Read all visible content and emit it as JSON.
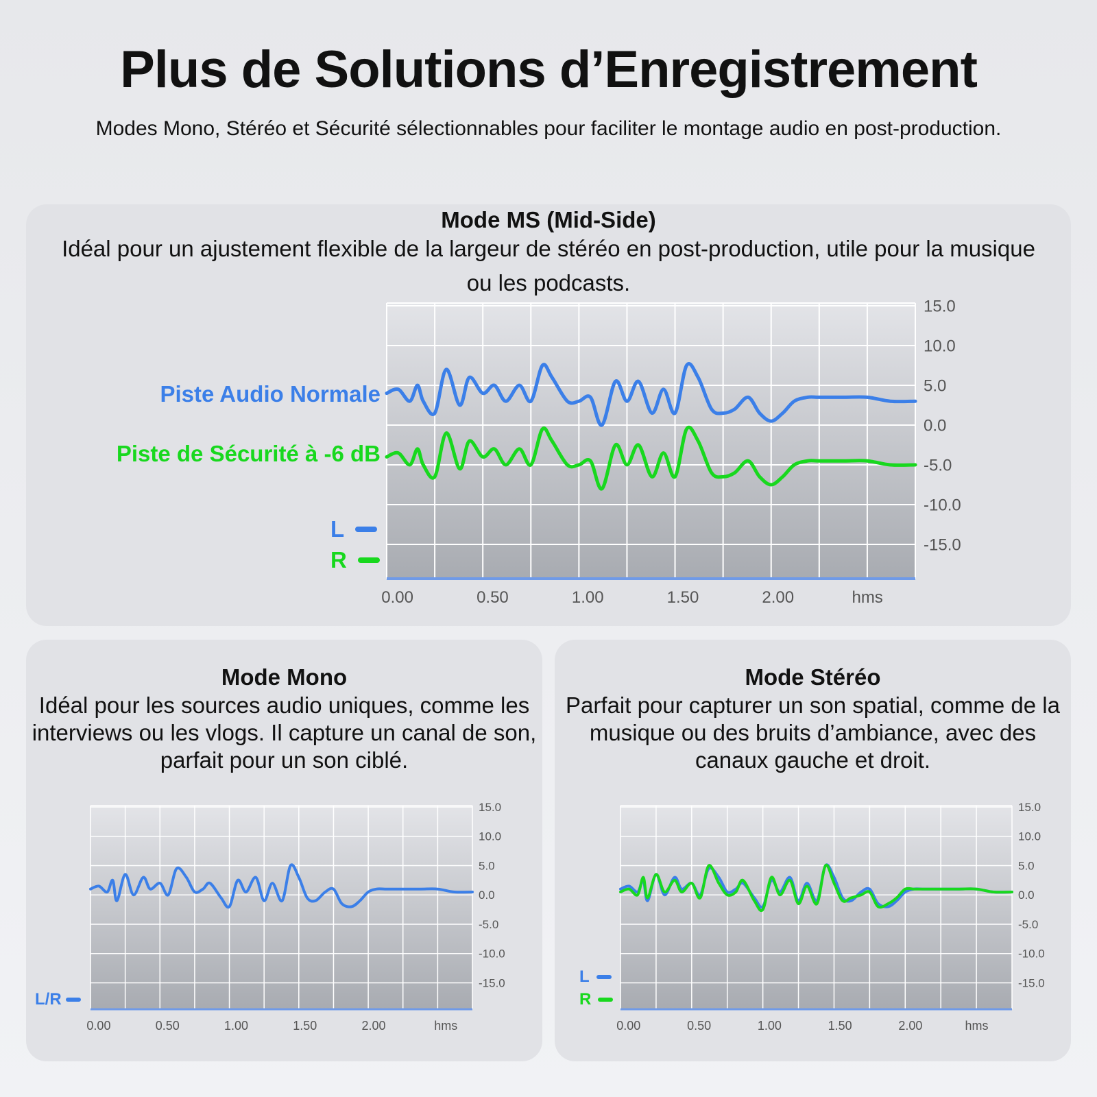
{
  "header": {
    "title": "Plus de Solutions d’Enregistrement",
    "subtitle": "Modes Mono, Stéréo et Sécurité sélectionnables pour faciliter le montage audio en post-production."
  },
  "colors": {
    "blue": "#3b7fe8",
    "green": "#18d81e"
  },
  "cards": {
    "ms": {
      "title": "Mode MS (Mid-Side)",
      "description": "Idéal pour un ajustement flexible de la largeur de stéréo en post-production, utile pour la musique ou les podcasts.",
      "series_labels": [
        "Piste Audio Normale",
        "Piste de Sécurité à -6 dB"
      ],
      "legend": [
        "L",
        "R"
      ]
    },
    "mono": {
      "title": "Mode Mono",
      "description": "Idéal pour les sources audio uniques, comme les interviews ou les vlogs. Il capture un canal de son, parfait pour un son ciblé.",
      "legend": [
        "L/R"
      ]
    },
    "stereo": {
      "title": "Mode Stéréo",
      "description": "Parfait pour capturer un son spatial, comme de la musique ou des bruits d’ambiance, avec des canaux gauche et droit.",
      "legend": [
        "L",
        "R"
      ]
    }
  },
  "chart_data": [
    {
      "type": "line",
      "title": "Mode MS (Mid-Side)",
      "x_tick_labels": [
        "0.00",
        "0.50",
        "1.00",
        "1.50",
        "2.00",
        "hms"
      ],
      "y_tick_labels": [
        "15.0",
        "10.0",
        "5.0",
        "0.0",
        "-5.0",
        "-10.0",
        "-15.0"
      ],
      "xlim": [
        0,
        2.75
      ],
      "ylim": [
        -19.5,
        15.0
      ],
      "grid": true,
      "series": [
        {
          "name": "Piste Audio Normale",
          "legend": "L",
          "color": "#3b7fe8",
          "x": [
            0,
            0.06,
            0.12,
            0.16,
            0.19,
            0.25,
            0.31,
            0.38,
            0.43,
            0.5,
            0.56,
            0.62,
            0.69,
            0.75,
            0.81,
            0.86,
            0.94,
            1.0,
            1.06,
            1.12,
            1.19,
            1.25,
            1.31,
            1.38,
            1.44,
            1.5,
            1.56,
            1.62,
            1.69,
            1.75,
            1.81,
            1.88,
            1.94,
            2.0,
            2.06,
            2.12,
            2.19,
            2.25,
            2.38,
            2.5,
            2.62,
            2.75
          ],
          "y": [
            4.0,
            4.5,
            3.0,
            5.0,
            3.0,
            1.5,
            7.0,
            2.5,
            6.0,
            4.0,
            5.0,
            3.0,
            5.0,
            3.0,
            7.5,
            6.0,
            3.0,
            3.0,
            3.5,
            0.0,
            5.5,
            3.0,
            5.5,
            1.5,
            4.5,
            1.5,
            7.5,
            6.0,
            2.0,
            1.5,
            2.0,
            3.5,
            1.5,
            0.5,
            1.5,
            3.0,
            3.5,
            3.5,
            3.5,
            3.5,
            3.0,
            3.0
          ]
        },
        {
          "name": "Piste de Sécurité à -6 dB",
          "legend": "R",
          "color": "#18d81e",
          "x": [
            0,
            0.06,
            0.12,
            0.16,
            0.19,
            0.25,
            0.31,
            0.38,
            0.43,
            0.5,
            0.56,
            0.62,
            0.69,
            0.75,
            0.81,
            0.86,
            0.94,
            1.0,
            1.06,
            1.12,
            1.19,
            1.25,
            1.31,
            1.38,
            1.44,
            1.5,
            1.56,
            1.62,
            1.69,
            1.75,
            1.81,
            1.88,
            1.94,
            2.0,
            2.06,
            2.12,
            2.19,
            2.25,
            2.38,
            2.5,
            2.62,
            2.75
          ],
          "y": [
            -4.0,
            -3.5,
            -5.0,
            -3.0,
            -5.0,
            -6.5,
            -1.0,
            -5.5,
            -2.0,
            -4.0,
            -3.0,
            -5.0,
            -3.0,
            -5.0,
            -0.5,
            -2.0,
            -5.0,
            -5.0,
            -4.5,
            -8.0,
            -2.5,
            -5.0,
            -2.5,
            -6.5,
            -3.5,
            -6.5,
            -0.5,
            -2.0,
            -6.0,
            -6.5,
            -6.0,
            -4.5,
            -6.5,
            -7.5,
            -6.5,
            -5.0,
            -4.5,
            -4.5,
            -4.5,
            -4.5,
            -5.0,
            -5.0
          ]
        }
      ]
    },
    {
      "type": "line",
      "title": "Mode Mono",
      "x_tick_labels": [
        "0.00",
        "0.50",
        "1.00",
        "1.50",
        "2.00",
        "hms"
      ],
      "y_tick_labels": [
        "15.0",
        "10.0",
        "5.0",
        "0.0",
        "-5.0",
        "-10.0",
        "-15.0"
      ],
      "xlim": [
        0,
        2.75
      ],
      "ylim": [
        -19.5,
        15.0
      ],
      "grid": true,
      "series": [
        {
          "name": "",
          "legend": "L/R",
          "color": "#3b7fe8",
          "x": [
            0,
            0.06,
            0.12,
            0.16,
            0.19,
            0.25,
            0.31,
            0.38,
            0.43,
            0.5,
            0.56,
            0.62,
            0.69,
            0.75,
            0.81,
            0.86,
            0.94,
            1.0,
            1.06,
            1.12,
            1.19,
            1.25,
            1.31,
            1.38,
            1.44,
            1.5,
            1.56,
            1.62,
            1.69,
            1.75,
            1.81,
            1.88,
            1.94,
            2.0,
            2.06,
            2.12,
            2.19,
            2.25,
            2.38,
            2.5,
            2.62,
            2.75
          ],
          "y": [
            1.0,
            1.5,
            0.5,
            2.5,
            -1.0,
            3.5,
            0.0,
            3.0,
            1.0,
            2.0,
            0.0,
            4.5,
            3.0,
            0.5,
            1.0,
            2.0,
            -0.5,
            -2.0,
            2.5,
            0.5,
            3.0,
            -1.0,
            2.0,
            -1.0,
            5.0,
            3.0,
            -0.5,
            -1.0,
            0.5,
            1.0,
            -1.5,
            -2.0,
            -1.0,
            0.5,
            1.0,
            1.0,
            1.0,
            1.0,
            1.0,
            1.0,
            0.5,
            0.5
          ]
        }
      ]
    },
    {
      "type": "line",
      "title": "Mode Stéréo",
      "x_tick_labels": [
        "0.00",
        "0.50",
        "1.00",
        "1.50",
        "2.00",
        "hms"
      ],
      "y_tick_labels": [
        "15.0",
        "10.0",
        "5.0",
        "0.0",
        "-5.0",
        "-10.0",
        "-15.0"
      ],
      "xlim": [
        0,
        2.75
      ],
      "ylim": [
        -19.5,
        15.0
      ],
      "grid": true,
      "series": [
        {
          "name": "",
          "legend": "L",
          "color": "#3b7fe8",
          "x": [
            0,
            0.06,
            0.12,
            0.16,
            0.19,
            0.25,
            0.31,
            0.38,
            0.43,
            0.5,
            0.56,
            0.62,
            0.69,
            0.75,
            0.81,
            0.86,
            0.94,
            1.0,
            1.06,
            1.12,
            1.19,
            1.25,
            1.31,
            1.38,
            1.44,
            1.5,
            1.56,
            1.62,
            1.69,
            1.75,
            1.81,
            1.88,
            1.94,
            2.0,
            2.06,
            2.12,
            2.19,
            2.25,
            2.38,
            2.5,
            2.62,
            2.75
          ],
          "y": [
            1.0,
            1.5,
            0.5,
            2.5,
            -1.0,
            3.5,
            0.0,
            3.0,
            1.0,
            2.0,
            0.0,
            4.5,
            3.0,
            0.5,
            1.0,
            2.0,
            -0.5,
            -2.0,
            2.5,
            0.5,
            3.0,
            -1.0,
            2.0,
            -1.0,
            5.0,
            3.0,
            -0.5,
            -1.0,
            0.5,
            1.0,
            -1.5,
            -2.0,
            -1.0,
            0.5,
            1.0,
            1.0,
            1.0,
            1.0,
            1.0,
            1.0,
            0.5,
            0.5
          ]
        },
        {
          "name": "",
          "legend": "R",
          "color": "#18d81e",
          "x": [
            0,
            0.06,
            0.12,
            0.16,
            0.19,
            0.25,
            0.31,
            0.38,
            0.43,
            0.5,
            0.56,
            0.62,
            0.69,
            0.75,
            0.81,
            0.86,
            0.94,
            1.0,
            1.06,
            1.12,
            1.19,
            1.25,
            1.31,
            1.38,
            1.44,
            1.5,
            1.56,
            1.62,
            1.69,
            1.75,
            1.81,
            1.88,
            1.94,
            2.0,
            2.06,
            2.12,
            2.19,
            2.25,
            2.38,
            2.5,
            2.62,
            2.75
          ],
          "y": [
            0.5,
            1.0,
            0.0,
            3.0,
            -0.5,
            3.5,
            0.5,
            2.5,
            0.5,
            2.0,
            -0.5,
            5.0,
            2.0,
            0.0,
            0.5,
            2.5,
            -1.0,
            -2.5,
            3.0,
            0.0,
            2.5,
            -1.5,
            1.5,
            -1.5,
            5.0,
            2.0,
            -1.0,
            -0.5,
            0.0,
            0.5,
            -2.0,
            -1.5,
            -0.5,
            1.0,
            1.0,
            1.0,
            1.0,
            1.0,
            1.0,
            1.0,
            0.5,
            0.5
          ]
        }
      ]
    }
  ]
}
